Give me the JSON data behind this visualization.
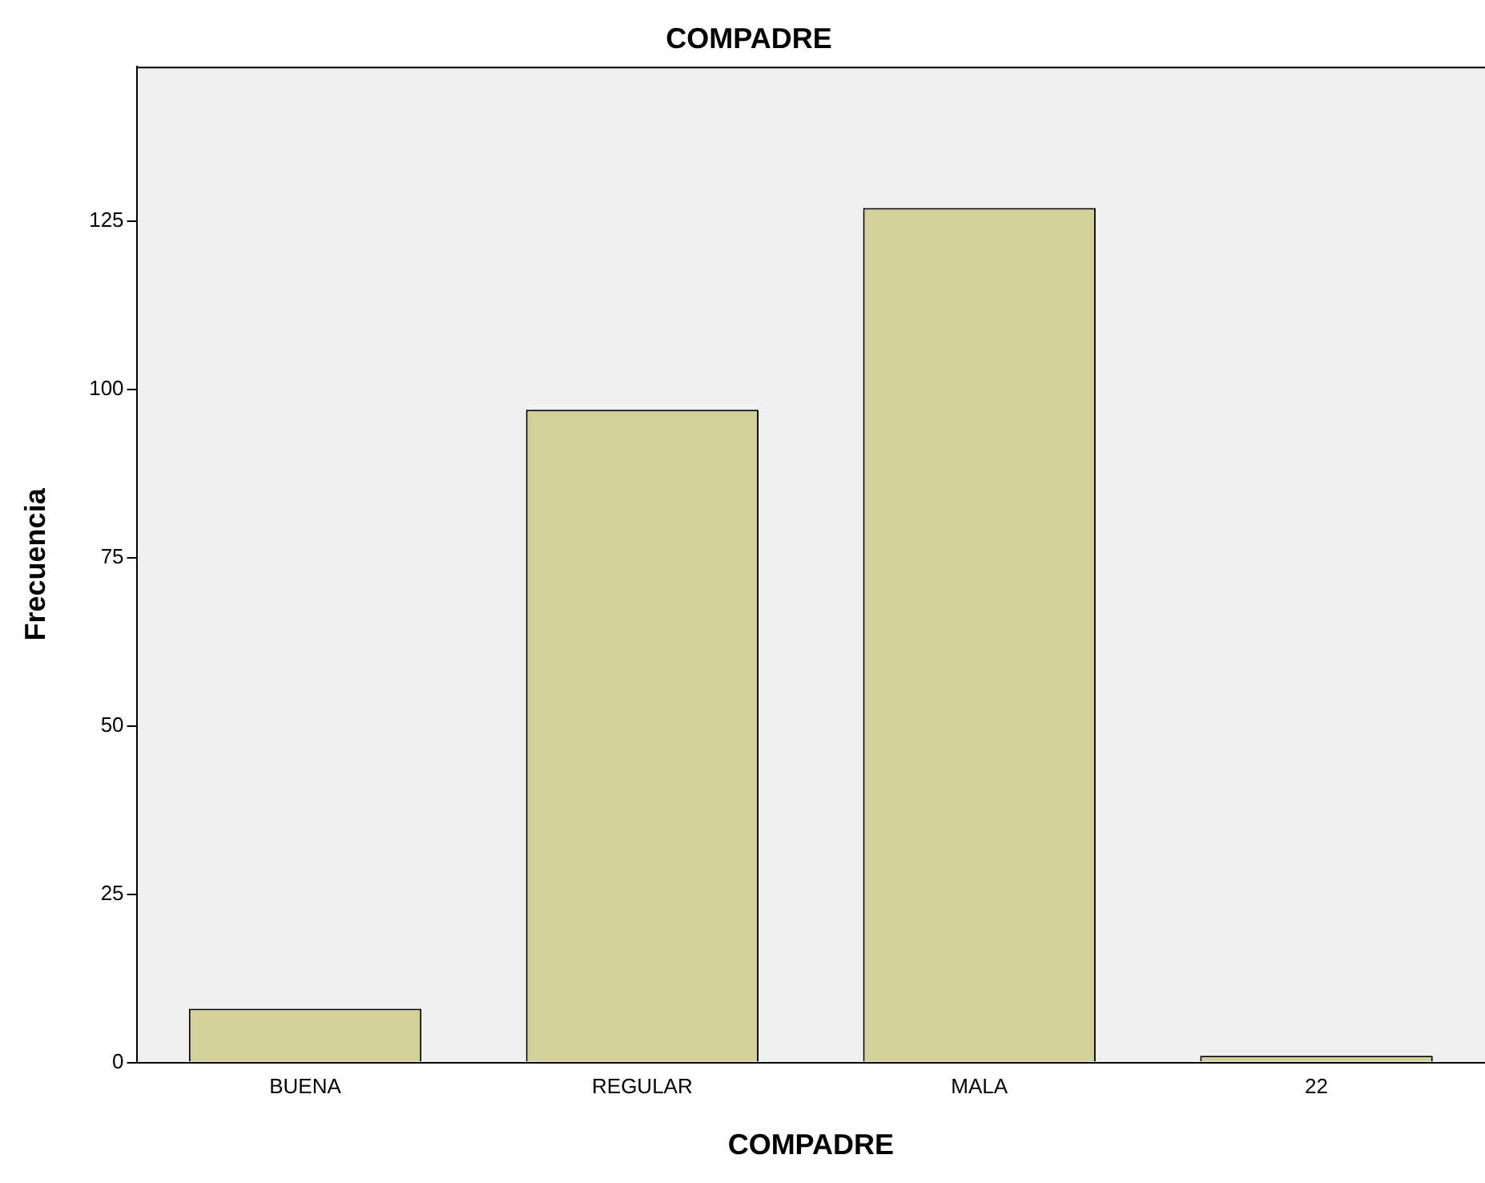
{
  "chart_data": {
    "type": "bar",
    "title": "COMPADRE",
    "xlabel": "COMPADRE",
    "ylabel": "Frecuencia",
    "categories": [
      "BUENA",
      "REGULAR",
      "MALA",
      "22"
    ],
    "values": [
      8,
      97,
      127,
      1
    ],
    "color": "#d3d09b",
    "ylim": [
      0,
      148
    ],
    "yticks": [
      0,
      25,
      50,
      75,
      100,
      125
    ],
    "grid": false,
    "legend": false
  }
}
